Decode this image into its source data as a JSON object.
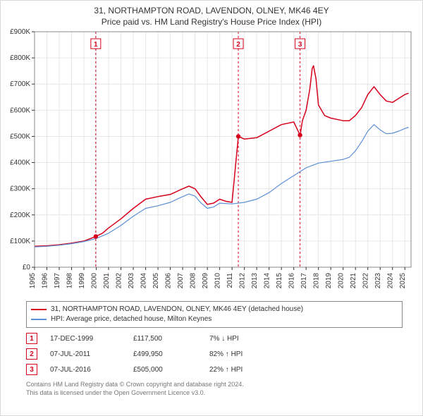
{
  "title_line1": "31, NORTHAMPTON ROAD, LAVENDON, OLNEY, MK46 4EY",
  "title_line2": "Price paid vs. HM Land Registry's House Price Index (HPI)",
  "title_fontsize": 12,
  "chart": {
    "type": "line",
    "background_color": "#ffffff",
    "plot_border_color": "#888888",
    "grid_color": "#e6e6e6",
    "x": {
      "min": 1995,
      "max": 2025.5,
      "ticks": [
        1995,
        1996,
        1997,
        1998,
        1999,
        2000,
        2001,
        2002,
        2003,
        2004,
        2005,
        2006,
        2007,
        2008,
        2009,
        2010,
        2011,
        2012,
        2013,
        2014,
        2015,
        2016,
        2017,
        2018,
        2019,
        2020,
        2021,
        2022,
        2023,
        2024,
        2025
      ],
      "tick_fontsize": 10,
      "tick_rotation": -90
    },
    "y": {
      "min": 0,
      "max": 900,
      "ticks": [
        0,
        100,
        200,
        300,
        400,
        500,
        600,
        700,
        800,
        900
      ],
      "tick_labels": [
        "£0",
        "£100K",
        "£200K",
        "£300K",
        "£400K",
        "£500K",
        "£600K",
        "£700K",
        "£800K",
        "£900K"
      ],
      "tick_fontsize": 10
    },
    "series": [
      {
        "id": "price_paid",
        "label": "31, NORTHAMPTON ROAD, LAVENDON, OLNEY, MK46 4EY (detached house)",
        "color": "#d6001c",
        "line_width": 1.5,
        "points": [
          [
            1995.0,
            80
          ],
          [
            1996.0,
            82
          ],
          [
            1997.0,
            86
          ],
          [
            1998.0,
            92
          ],
          [
            1999.0,
            100
          ],
          [
            1999.96,
            117.5
          ],
          [
            2000.5,
            130
          ],
          [
            2001.0,
            150
          ],
          [
            2002.0,
            185
          ],
          [
            2003.0,
            225
          ],
          [
            2004.0,
            260
          ],
          [
            2005.0,
            270
          ],
          [
            2006.0,
            278
          ],
          [
            2007.0,
            300
          ],
          [
            2007.5,
            310
          ],
          [
            2008.0,
            300
          ],
          [
            2008.5,
            268
          ],
          [
            2009.0,
            240
          ],
          [
            2009.5,
            245
          ],
          [
            2010.0,
            260
          ],
          [
            2010.5,
            252
          ],
          [
            2011.0,
            248
          ],
          [
            2011.51,
            499.95
          ],
          [
            2012.0,
            490
          ],
          [
            2013.0,
            495
          ],
          [
            2014.0,
            520
          ],
          [
            2015.0,
            545
          ],
          [
            2016.0,
            555
          ],
          [
            2016.51,
            505
          ],
          [
            2016.52,
            505
          ],
          [
            2016.7,
            560
          ],
          [
            2017.0,
            600
          ],
          [
            2017.3,
            680
          ],
          [
            2017.5,
            760
          ],
          [
            2017.6,
            770
          ],
          [
            2017.8,
            720
          ],
          [
            2018.0,
            620
          ],
          [
            2018.5,
            580
          ],
          [
            2019.0,
            570
          ],
          [
            2020.0,
            560
          ],
          [
            2020.5,
            560
          ],
          [
            2021.0,
            580
          ],
          [
            2021.5,
            610
          ],
          [
            2022.0,
            660
          ],
          [
            2022.5,
            690
          ],
          [
            2023.0,
            660
          ],
          [
            2023.5,
            635
          ],
          [
            2024.0,
            630
          ],
          [
            2024.5,
            645
          ],
          [
            2025.0,
            660
          ],
          [
            2025.3,
            665
          ]
        ]
      },
      {
        "id": "hpi",
        "label": "HPI: Average price, detached house, Milton Keynes",
        "color": "#5b8fd6",
        "line_width": 1.2,
        "points": [
          [
            1995.0,
            78
          ],
          [
            1996.0,
            80
          ],
          [
            1997.0,
            84
          ],
          [
            1998.0,
            90
          ],
          [
            1999.0,
            98
          ],
          [
            2000.0,
            110
          ],
          [
            2001.0,
            130
          ],
          [
            2002.0,
            160
          ],
          [
            2003.0,
            195
          ],
          [
            2004.0,
            225
          ],
          [
            2005.0,
            235
          ],
          [
            2006.0,
            248
          ],
          [
            2007.0,
            270
          ],
          [
            2007.5,
            280
          ],
          [
            2008.0,
            272
          ],
          [
            2008.5,
            245
          ],
          [
            2009.0,
            225
          ],
          [
            2009.5,
            230
          ],
          [
            2010.0,
            245
          ],
          [
            2011.0,
            242
          ],
          [
            2012.0,
            248
          ],
          [
            2013.0,
            260
          ],
          [
            2014.0,
            285
          ],
          [
            2015.0,
            320
          ],
          [
            2016.0,
            350
          ],
          [
            2017.0,
            380
          ],
          [
            2018.0,
            398
          ],
          [
            2019.0,
            405
          ],
          [
            2020.0,
            412
          ],
          [
            2020.5,
            420
          ],
          [
            2021.0,
            445
          ],
          [
            2021.5,
            480
          ],
          [
            2022.0,
            520
          ],
          [
            2022.5,
            545
          ],
          [
            2023.0,
            525
          ],
          [
            2023.5,
            510
          ],
          [
            2024.0,
            512
          ],
          [
            2024.5,
            520
          ],
          [
            2025.0,
            530
          ],
          [
            2025.3,
            535
          ]
        ]
      }
    ],
    "event_markers": [
      {
        "n": "1",
        "x": 1999.96,
        "y": 117.5
      },
      {
        "n": "2",
        "x": 2011.51,
        "y": 499.95
      },
      {
        "n": "3",
        "x": 2016.51,
        "y": 505
      }
    ],
    "marker_color": "#d6001c",
    "marker_dot_radius": 3.2,
    "dashed_line_color": "#d6001c",
    "dashed_pattern": "3,3"
  },
  "legend": {
    "border_color": "#888888",
    "items": [
      {
        "color": "#d6001c",
        "label": "31, NORTHAMPTON ROAD, LAVENDON, OLNEY, MK46 4EY (detached house)"
      },
      {
        "color": "#5b8fd6",
        "label": "HPI: Average price, detached house, Milton Keynes"
      }
    ]
  },
  "events": [
    {
      "n": "1",
      "date": "17-DEC-1999",
      "price": "£117,500",
      "pct": "7% ↓ HPI"
    },
    {
      "n": "2",
      "date": "07-JUL-2011",
      "price": "£499,950",
      "pct": "82% ↑ HPI"
    },
    {
      "n": "3",
      "date": "07-JUL-2016",
      "price": "£505,000",
      "pct": "22% ↑ HPI"
    }
  ],
  "footer_line1": "Contains HM Land Registry data © Crown copyright and database right 2024.",
  "footer_line2": "This data is licensed under the Open Government Licence v3.0."
}
